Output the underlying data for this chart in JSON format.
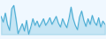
{
  "values": [
    0.62,
    0.45,
    0.72,
    0.38,
    0.2,
    0.85,
    0.95,
    0.55,
    0.1,
    0.25,
    0.4,
    0.18,
    0.5,
    0.08,
    0.3,
    0.55,
    0.35,
    0.48,
    0.3,
    0.42,
    0.55,
    0.35,
    0.45,
    0.58,
    0.38,
    0.5,
    0.62,
    0.42,
    0.3,
    0.55,
    0.4,
    0.28,
    0.55,
    0.9,
    0.55,
    0.35,
    0.22,
    0.6,
    0.78,
    0.5,
    0.32,
    0.55,
    0.38,
    0.65,
    0.45,
    0.35,
    0.58,
    0.3,
    0.48,
    0.38
  ],
  "line_color": "#4badd4",
  "bg_color": "#f0f8ff",
  "linewidth": 0.75,
  "ylim": [
    -0.05,
    1.1
  ],
  "fill": true,
  "fill_color": "#4badd4",
  "fill_alpha": 0.25
}
